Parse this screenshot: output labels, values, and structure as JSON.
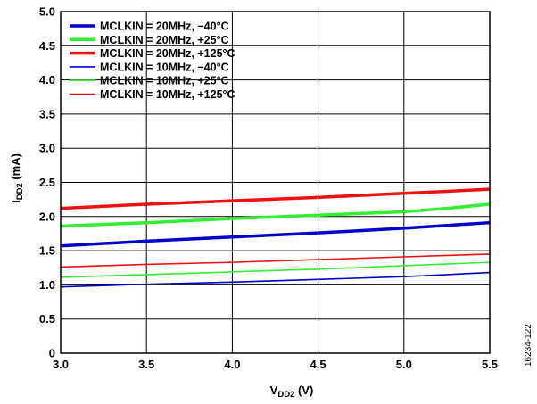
{
  "chart_data": {
    "type": "line",
    "title": "",
    "xlabel": {
      "base": "V",
      "sub": "DD2",
      "unit": " (V)"
    },
    "ylabel": {
      "base": "I",
      "sub": "DD2",
      "unit": " (mA)"
    },
    "xlim": [
      3.0,
      5.5
    ],
    "ylim": [
      0,
      5.0
    ],
    "x_ticks": [
      3.0,
      3.5,
      4.0,
      4.5,
      5.0,
      5.5
    ],
    "x_tick_labels": [
      "3.0",
      "3.5",
      "4.0",
      "4.5",
      "5.0",
      "5.5"
    ],
    "y_ticks": [
      0,
      0.5,
      1.0,
      1.5,
      2.0,
      2.5,
      3.0,
      3.5,
      4.0,
      4.5,
      5.0
    ],
    "y_tick_labels": [
      "0",
      "0.5",
      "1.0",
      "1.5",
      "2.0",
      "2.5",
      "3.0",
      "3.5",
      "4.0",
      "4.5",
      "5.0"
    ],
    "grid": true,
    "legend_position": "top-left",
    "series": [
      {
        "name": "MCLKIN = 20MHz, −40°C",
        "color": "#0000cc",
        "width": "thick",
        "x": [
          3.0,
          3.5,
          4.0,
          4.5,
          5.0,
          5.5
        ],
        "y": [
          1.57,
          1.64,
          1.7,
          1.76,
          1.83,
          1.91
        ]
      },
      {
        "name": "MCLKIN = 20MHz, +25°C",
        "color": "#33ee33",
        "width": "thick",
        "x": [
          3.0,
          3.5,
          4.0,
          4.5,
          5.0,
          5.25,
          5.5
        ],
        "y": [
          1.86,
          1.91,
          1.97,
          2.02,
          2.07,
          2.12,
          2.18
        ]
      },
      {
        "name": "MCLKIN = 20MHz, +125°C",
        "color": "#ee1111",
        "width": "thick",
        "x": [
          3.0,
          3.5,
          4.0,
          4.5,
          5.0,
          5.5
        ],
        "y": [
          2.12,
          2.18,
          2.23,
          2.28,
          2.34,
          2.4
        ]
      },
      {
        "name": "MCLKIN = 10MHz, −40°C",
        "color": "#0000cc",
        "width": "thin",
        "x": [
          3.0,
          3.5,
          4.0,
          4.5,
          5.0,
          5.5
        ],
        "y": [
          0.97,
          1.01,
          1.04,
          1.08,
          1.12,
          1.18
        ]
      },
      {
        "name": "MCLKIN = 10MHz, +25°C",
        "color": "#33ee33",
        "width": "thin",
        "x": [
          3.0,
          3.5,
          4.0,
          4.5,
          5.0,
          5.5
        ],
        "y": [
          1.11,
          1.15,
          1.19,
          1.23,
          1.28,
          1.33
        ]
      },
      {
        "name": "MCLKIN = 10MHz, +125°C",
        "color": "#ee1111",
        "width": "thin",
        "x": [
          3.0,
          3.5,
          4.0,
          4.5,
          5.0,
          5.5
        ],
        "y": [
          1.26,
          1.3,
          1.33,
          1.37,
          1.41,
          1.45
        ]
      }
    ]
  },
  "figure_id": "16234-122"
}
